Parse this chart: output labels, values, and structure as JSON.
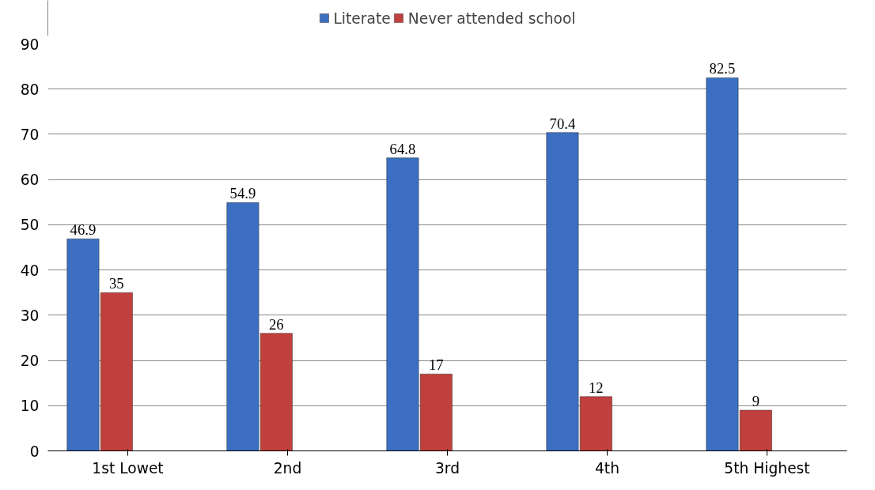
{
  "chart_data": {
    "type": "bar",
    "categories": [
      "1st Lowet",
      "2nd",
      "3rd",
      "4th",
      "5th Highest"
    ],
    "series": [
      {
        "name": "Literate",
        "color": "#3c6fc2",
        "values": [
          46.9,
          54.9,
          64.8,
          70.4,
          82.5
        ]
      },
      {
        "name": "Never attended school",
        "color": "#c0403d",
        "values": [
          35,
          26,
          17,
          12,
          9
        ]
      }
    ],
    "ylim": [
      0,
      90
    ],
    "yticks": [
      0,
      10,
      20,
      30,
      40,
      50,
      60,
      70,
      80,
      90
    ],
    "grid": "y",
    "legend": "top",
    "data_labels": true
  }
}
